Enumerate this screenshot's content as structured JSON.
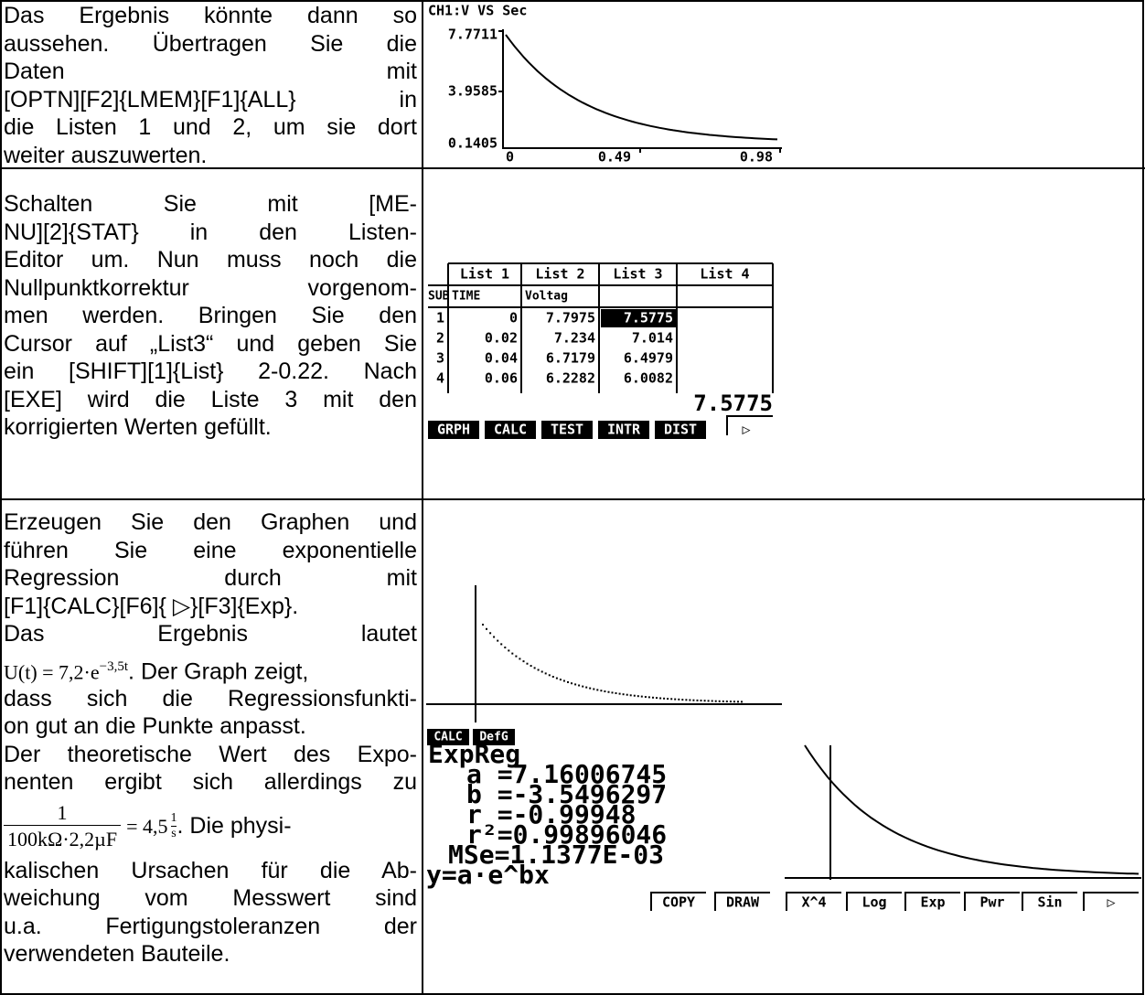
{
  "rows": [
    {
      "text": [
        "Das Ergebnis könnte dann so",
        "aussehen. Übertragen Sie die",
        "Daten mit",
        "[OPTN][F2]{LMEM}[F1]{ALL} in",
        "die Listen 1 und 2, um sie dort",
        "weiter auszuwerten."
      ],
      "screen": {
        "title": "CH1:V VS Sec",
        "yticks": [
          "7.7711",
          "3.9585",
          "0.1405"
        ],
        "xticks": [
          "0",
          "0.49",
          "0.98"
        ]
      }
    },
    {
      "text": [
        "Schalten Sie mit [ME-",
        "NU][2]{STAT} in den Listen-",
        "Editor um. Nun muss noch die",
        "Nullpunktkorrektur vorgenom-",
        "men werden. Bringen Sie den",
        "Cursor auf „List3“ und geben Sie",
        "ein [SHIFT][1]{List} 2-0.22. Nach",
        "[EXE] wird die Liste 3 mit den",
        "korrigierten Werten gefüllt."
      ],
      "screen": {
        "columns": [
          "List 1",
          "List 2",
          "List 3",
          "List 4"
        ],
        "sub": [
          "SUB",
          "TIME",
          "Voltag"
        ],
        "rows": [
          [
            "1",
            "0",
            "7.7975",
            "7.5775"
          ],
          [
            "2",
            "0.02",
            "7.234",
            "7.014"
          ],
          [
            "3",
            "0.04",
            "6.7179",
            "6.4979"
          ],
          [
            "4",
            "0.06",
            "6.2282",
            "6.0082"
          ]
        ],
        "value": "7.5775",
        "menu": [
          "GRPH",
          "CALC",
          "TEST",
          "INTR",
          "DIST",
          "▷"
        ]
      }
    },
    {
      "text_a": [
        "Erzeugen Sie den Graphen und",
        "führen Sie eine exponentielle",
        "Regression durch mit",
        "[F1]{CALC}[F6]{ ▷}[F3]{Exp}.",
        "Das Ergebnis lautet"
      ],
      "formula": {
        "lhs": "U(t) = 7,2·e",
        "exp": "−3,5t",
        "rest": ". Der Graph zeigt,"
      },
      "text_b": [
        "dass sich die Regressionsfunkti-",
        "on gut an die Punkte anpasst.",
        "Der theoretische Wert des Expo-",
        "nenten ergibt sich allerdings zu"
      ],
      "fraction": {
        "numerator": "1",
        "denominator": "100kΩ·2,2µF",
        "result": "= 4,5",
        "unit_numerator": "1",
        "unit_denominator": "s",
        "rest": ". Die physi-"
      },
      "text_c": [
        "kalischen Ursachen für die Ab-",
        "weichung vom Messwert sind",
        "u.a. Fertigungstoleranzen der",
        "verwendeten Bauteile."
      ],
      "screen": {
        "menu": [
          "CALC",
          "DefG"
        ],
        "result": [
          "ExpReg",
          "a =7.16006745",
          "b =-3.5496297",
          "r =-0.99948",
          "r²=0.99896046",
          "MSe=1.1377E-03",
          "y=a·e^bx"
        ],
        "graph_menu": [
          "COPY",
          "DRAW",
          "X^4",
          "Log",
          "Exp",
          "Pwr",
          "Sin",
          "▷"
        ]
      }
    }
  ]
}
